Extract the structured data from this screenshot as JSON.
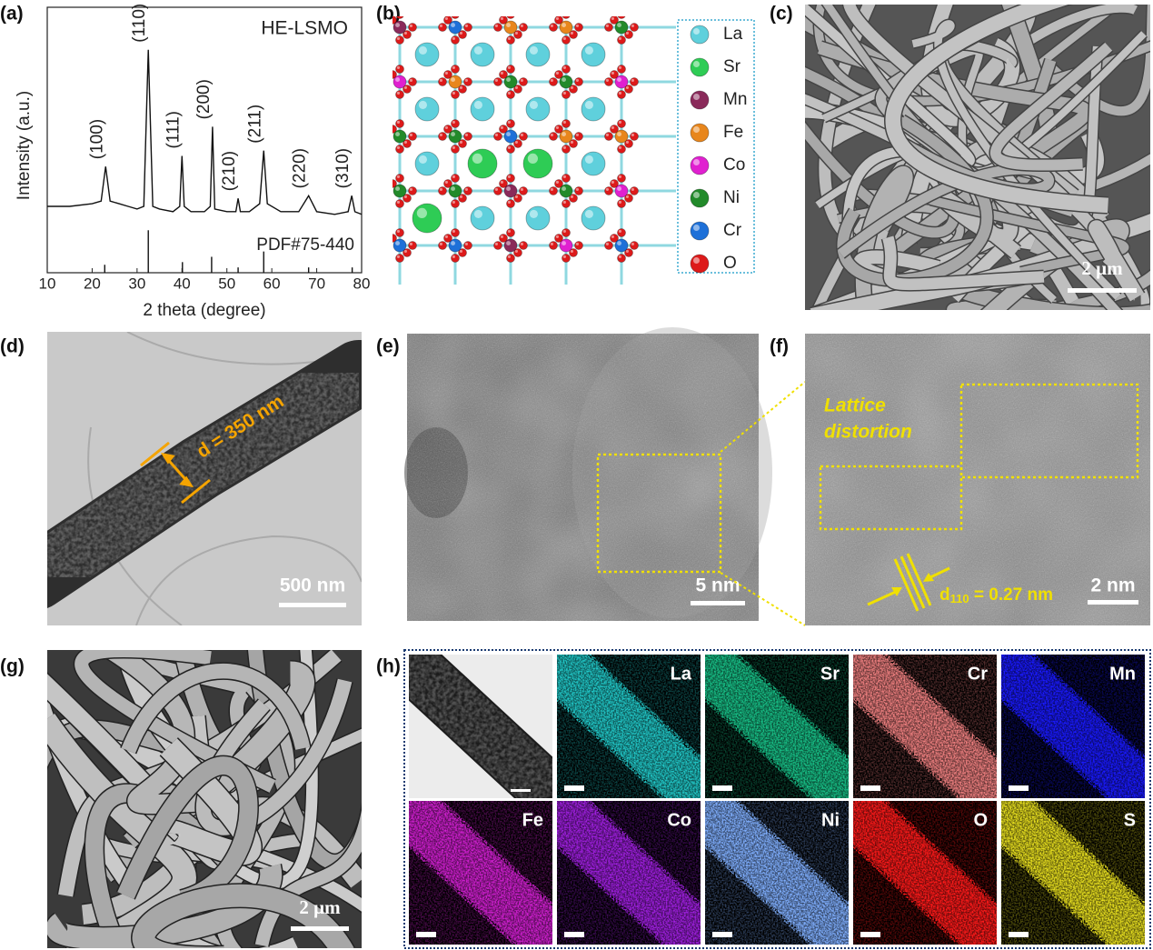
{
  "labels": {
    "a": "(a)",
    "b": "(b)",
    "c": "(c)",
    "d": "(d)",
    "e": "(e)",
    "f": "(f)",
    "g": "(g)",
    "h": "(h)"
  },
  "chart_data": {
    "type": "line",
    "title": "HE-LSMO",
    "x_label": "2 theta (degree)",
    "y_label": "Intensity (a.u.)",
    "xlim": [
      10,
      80
    ],
    "xticks": [
      10,
      20,
      30,
      40,
      50,
      60,
      70,
      80
    ],
    "ylim": [
      0,
      100
    ],
    "series": [
      {
        "name": "HE-LSMO",
        "style": "line",
        "color": "#111111",
        "x": [
          10,
          15,
          20,
          22,
          23,
          24,
          26,
          28,
          30,
          31.5,
          32.5,
          33.5,
          35,
          38,
          39.5,
          40,
          40.5,
          42,
          45,
          46.3,
          46.8,
          47.3,
          50,
          52,
          52.5,
          53,
          55,
          57.3,
          58.2,
          59,
          62,
          66,
          68.2,
          70,
          74,
          77,
          77.8,
          78.5,
          80
        ],
        "values": [
          25,
          25,
          26,
          27,
          40,
          27,
          26,
          25,
          24,
          25,
          84,
          25,
          24,
          23,
          25,
          44,
          25,
          23,
          23,
          25,
          55,
          24,
          23,
          23,
          28,
          23,
          23,
          26,
          46,
          26,
          23,
          23,
          29,
          23,
          22,
          23,
          29,
          23,
          22
        ]
      },
      {
        "name": "PDF#75-440",
        "style": "stem",
        "color": "#111111",
        "x": [
          22.8,
          32.5,
          40.1,
          46.6,
          52.5,
          58.2,
          68.2,
          77.9
        ],
        "values": [
          3,
          16,
          4,
          6,
          2,
          8,
          2,
          2
        ]
      }
    ],
    "annotations": [
      {
        "text": "(100)",
        "x": 23
      },
      {
        "text": "(110)",
        "x": 32.5
      },
      {
        "text": "(111)",
        "x": 40
      },
      {
        "text": "(200)",
        "x": 46.8
      },
      {
        "text": "(210)",
        "x": 52.5
      },
      {
        "text": "(211)",
        "x": 58.2
      },
      {
        "text": "(220)",
        "x": 68.2
      },
      {
        "text": "(310)",
        "x": 77.8
      }
    ]
  },
  "structure": {
    "elements": [
      {
        "name": "La",
        "color": "#5fd0dc"
      },
      {
        "name": "Sr",
        "color": "#2ecc55"
      },
      {
        "name": "Mn",
        "color": "#8a2a5a"
      },
      {
        "name": "Fe",
        "color": "#e8861c"
      },
      {
        "name": "Co",
        "color": "#e020d0"
      },
      {
        "name": "Ni",
        "color": "#228a2a"
      },
      {
        "name": "Cr",
        "color": "#1e70d8"
      },
      {
        "name": "O",
        "color": "#dd1a1a"
      }
    ]
  },
  "sem_c": {
    "scale": "2 μm"
  },
  "tem_d": {
    "diameter": "d = 350 nm",
    "scale": "500 nm"
  },
  "hrtem_e": {
    "scale": "5 nm"
  },
  "hrtem_f": {
    "note": [
      "Lattice",
      "distortion"
    ],
    "spacing": [
      "d",
      "110",
      " = 0.27 nm"
    ],
    "scale": "2 nm"
  },
  "sem_g": {
    "scale": "2 μm"
  },
  "mapping_h": {
    "maps": [
      {
        "element": "La",
        "color": "#22c8c8"
      },
      {
        "element": "Sr",
        "color": "#18c088"
      },
      {
        "element": "Cr",
        "color": "#f08080"
      },
      {
        "element": "Mn",
        "color": "#1a1aff"
      },
      {
        "element": "Fe",
        "color": "#d020d0"
      },
      {
        "element": "Co",
        "color": "#a020e0"
      },
      {
        "element": "Ni",
        "color": "#80b0ff"
      },
      {
        "element": "O",
        "color": "#ff1a1a"
      },
      {
        "element": "S",
        "color": "#e8e020"
      }
    ]
  }
}
